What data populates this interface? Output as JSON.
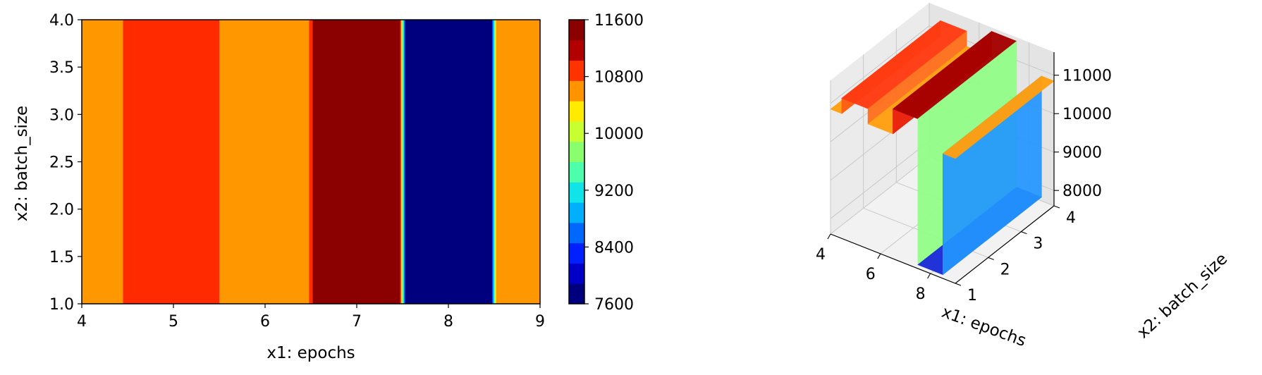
{
  "chart_data": [
    {
      "type": "heatmap",
      "subtype": "filled-contour",
      "xlabel": "x1: epochs",
      "ylabel": "x2: batch_size",
      "xlim": [
        4,
        9
      ],
      "ylim": [
        1.0,
        4.0
      ],
      "xticks": [
        "4",
        "5",
        "6",
        "7",
        "8",
        "9"
      ],
      "yticks": [
        "1.0",
        "1.5",
        "2.0",
        "2.5",
        "3.0",
        "3.5",
        "4.0"
      ],
      "colormap": "jet",
      "colorbar": {
        "ticks": [
          "7600",
          "8400",
          "9200",
          "10000",
          "10800",
          "11600"
        ],
        "levels": [
          7600,
          7800,
          8000,
          8200,
          8400,
          8600,
          8800,
          9000,
          9200,
          9400,
          9600,
          9800,
          10000,
          10200,
          10400,
          10600,
          10800,
          11000,
          11200,
          11400,
          11600
        ],
        "colors": [
          "#00007f",
          "#0000c8",
          "#0020ff",
          "#0068ff",
          "#00b0ff",
          "#10e4e8",
          "#4dffaa",
          "#8aff6d",
          "#c7ff30",
          "#ffea00",
          "#ff9400",
          "#ff3300",
          "#b20000",
          "#8b0000"
        ]
      },
      "bands": [
        {
          "x": [
            4.0,
            4.45
          ],
          "value": 10850,
          "color": "#ff9800"
        },
        {
          "x": [
            4.45,
            5.5
          ],
          "value": 11250,
          "color": "#ff2a00"
        },
        {
          "x": [
            5.5,
            6.48
          ],
          "value": 10850,
          "color": "#ff9800"
        },
        {
          "x": [
            6.48,
            6.52
          ],
          "value": 11250,
          "color": "#ff2a00"
        },
        {
          "x": [
            6.52,
            7.5
          ],
          "value": 11500,
          "color": "#8b0000"
        },
        {
          "x": [
            7.5,
            8.5
          ],
          "value": 7700,
          "color": "#00007f"
        },
        {
          "x": [
            8.5,
            9.0
          ],
          "value": 10850,
          "color": "#ff9800"
        }
      ]
    },
    {
      "type": "surface",
      "xlabel": "x1: epochs",
      "ylabel": "x2: batch_size",
      "xticks": [
        "4",
        "6",
        "8"
      ],
      "yticks": [
        "1",
        "2",
        "3",
        "4"
      ],
      "zticks": [
        "8000",
        "9000",
        "10000",
        "11000"
      ],
      "xlim": [
        4,
        9
      ],
      "ylim": [
        1,
        4
      ],
      "zlim": [
        7600,
        11600
      ],
      "steps": [
        {
          "x": [
            4.0,
            4.45
          ],
          "z": 10850,
          "color": "#ff9f10"
        },
        {
          "x": [
            4.45,
            5.5
          ],
          "z": 11250,
          "color": "#ff3a12"
        },
        {
          "x": [
            5.5,
            6.5
          ],
          "z": 10850,
          "color": "#ff9f10"
        },
        {
          "x": [
            6.5,
            7.5
          ],
          "z": 11500,
          "color": "#a40000"
        },
        {
          "x": [
            7.5,
            8.5
          ],
          "z": 7700,
          "color": "#1a2bd8"
        },
        {
          "x": [
            8.5,
            9.0
          ],
          "z": 10850,
          "color": "#ff9f10"
        }
      ],
      "risers": [
        {
          "x": 4.45,
          "color": "#ff5a14"
        },
        {
          "x": 5.5,
          "color": "#ff6a14"
        },
        {
          "x": 6.5,
          "color": "#e81a10"
        },
        {
          "x": 7.5,
          "color": "#8fff86"
        },
        {
          "x": 8.5,
          "color": "#2296ff"
        }
      ]
    }
  ]
}
